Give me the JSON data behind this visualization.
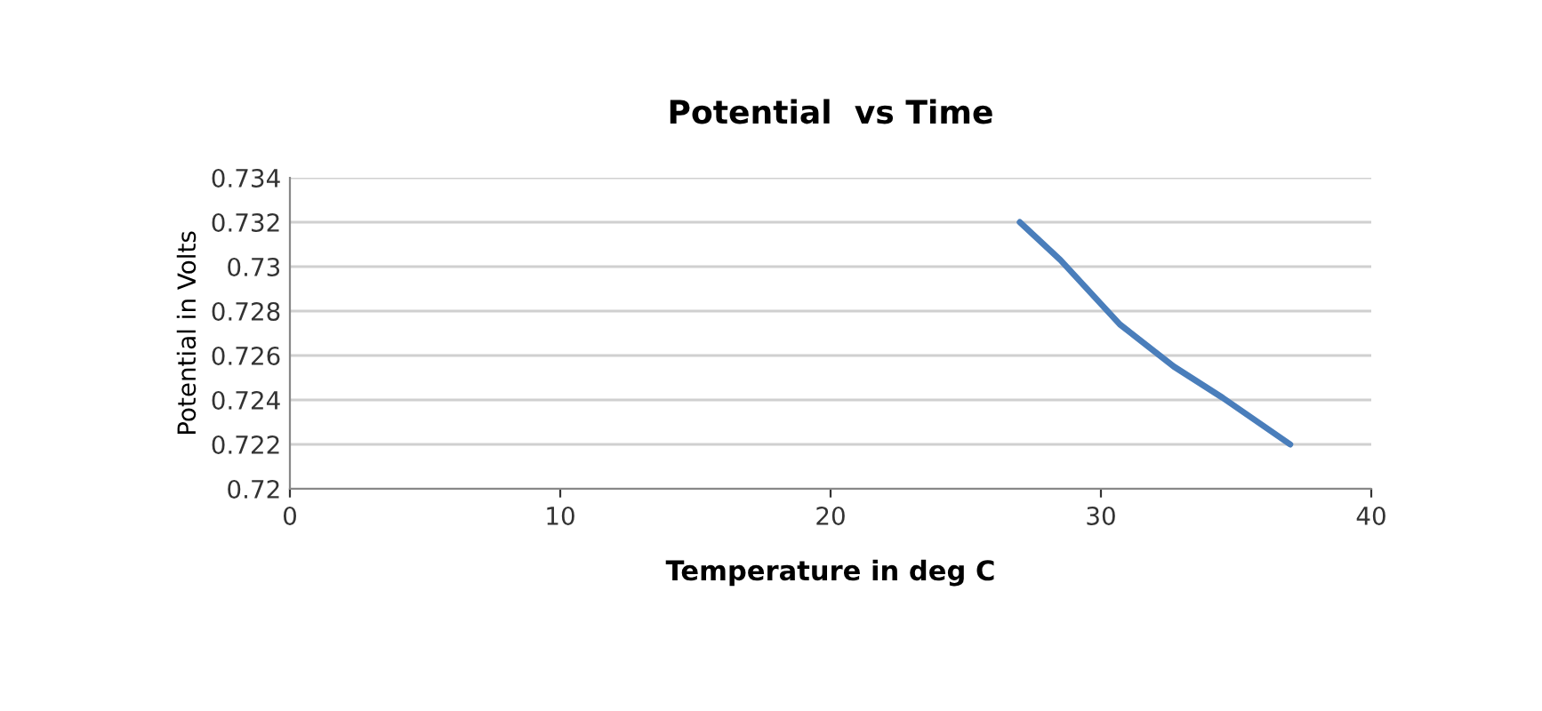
{
  "chart_data": {
    "type": "line",
    "title": "Potential  vs Time",
    "xlabel": "Temperature in deg C",
    "ylabel": "Potential in Volts",
    "x": [
      27,
      28.5,
      30.7,
      32.7,
      34.5,
      37
    ],
    "series": [
      {
        "color": "#4a7ebb",
        "values": [
          0.732,
          0.7303,
          0.7274,
          0.7255,
          0.7241,
          0.722
        ]
      }
    ],
    "xlim": [
      0,
      40
    ],
    "xticks": [
      0,
      10,
      20,
      30,
      40
    ],
    "ylim": [
      0.72,
      0.734
    ],
    "yticks": [
      {
        "value": 0.72,
        "label": "0.72"
      },
      {
        "value": 0.722,
        "label": "0.722"
      },
      {
        "value": 0.724,
        "label": "0.724"
      },
      {
        "value": 0.726,
        "label": "0.726"
      },
      {
        "value": 0.728,
        "label": "0.728"
      },
      {
        "value": 0.73,
        "label": "0.73"
      },
      {
        "value": 0.732,
        "label": "0.732"
      },
      {
        "value": 0.734,
        "label": "0.734"
      }
    ],
    "grid": "y",
    "legend": false,
    "marker": "none",
    "line_style": "solid"
  }
}
